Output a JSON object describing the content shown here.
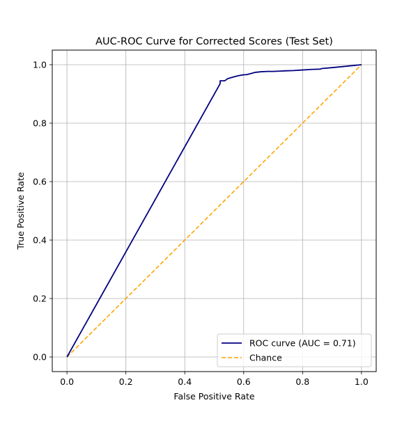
{
  "chart_data": {
    "type": "line",
    "title": "AUC-ROC Curve for Corrected Scores (Test Set)",
    "xlabel": "False Positive Rate",
    "ylabel": "True Positive Rate",
    "xlim": [
      -0.05,
      1.05
    ],
    "ylim": [
      -0.05,
      1.05
    ],
    "x_ticks": [
      0.0,
      0.2,
      0.4,
      0.6,
      0.8,
      1.0
    ],
    "y_ticks": [
      0.0,
      0.2,
      0.4,
      0.6,
      0.8,
      1.0
    ],
    "x_tick_labels": [
      "0.0",
      "0.2",
      "0.4",
      "0.6",
      "0.8",
      "1.0"
    ],
    "y_tick_labels": [
      "0.0",
      "0.2",
      "0.4",
      "0.6",
      "0.8",
      "1.0"
    ],
    "grid": true,
    "legend_position": "lower-right",
    "series": [
      {
        "name": "ROC curve (AUC = 0.71)",
        "color": "#000080",
        "style": "solid",
        "x": [
          0.0,
          0.52,
          0.52,
          0.535,
          0.54,
          0.545,
          0.555,
          0.565,
          0.58,
          0.595,
          0.61,
          0.625,
          0.64,
          0.66,
          0.68,
          0.7,
          0.72,
          0.74,
          0.77,
          0.8,
          0.83,
          0.86,
          0.865,
          0.9,
          0.93,
          0.96,
          1.0
        ],
        "y": [
          0.0,
          0.935,
          0.945,
          0.945,
          0.948,
          0.952,
          0.955,
          0.958,
          0.962,
          0.965,
          0.966,
          0.97,
          0.974,
          0.976,
          0.977,
          0.977,
          0.978,
          0.979,
          0.98,
          0.982,
          0.984,
          0.985,
          0.987,
          0.99,
          0.993,
          0.996,
          1.0
        ]
      },
      {
        "name": "Chance",
        "color": "#ffa500",
        "style": "dashed",
        "x": [
          0.0,
          1.0
        ],
        "y": [
          0.0,
          1.0
        ]
      }
    ]
  }
}
